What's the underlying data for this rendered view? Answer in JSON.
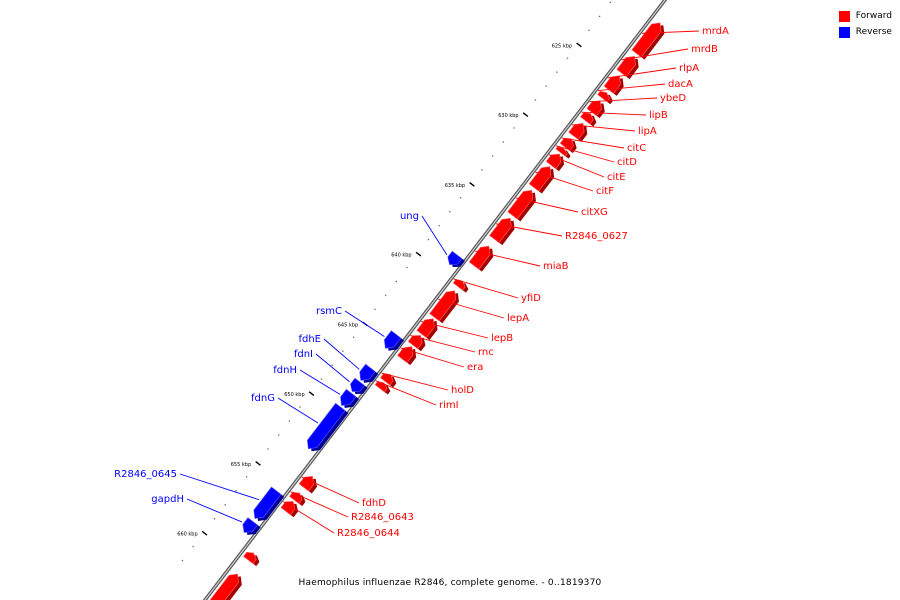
{
  "colors": {
    "forward": "#ff0000",
    "reverse": "#0000ff",
    "backbone": "#888888"
  },
  "legend": [
    {
      "label": "Forward",
      "color": "#ff0000"
    },
    {
      "label": "Reverse",
      "color": "#0000ff"
    }
  ],
  "caption": "Haemophilus influenzae R2846, complete genome. - 0..1819370",
  "chart_data": {
    "type": "genome-map",
    "unit": "kbp",
    "view_range": [
      620,
      663
    ],
    "tick_labels": [
      "625 kbp",
      "630 kbp",
      "635 kbp",
      "640 kbp",
      "645 kbp",
      "650 kbp",
      "655 kbp",
      "660 kbp"
    ],
    "tick_positions": [
      625,
      630,
      635,
      640,
      645,
      650,
      655,
      660
    ],
    "genes": [
      {
        "name": "mrdA",
        "strand": "forward",
        "start": 621.2,
        "end": 623.4
      },
      {
        "name": "mrdB",
        "strand": "forward",
        "start": 623.6,
        "end": 624.8
      },
      {
        "name": "rlpA",
        "strand": "forward",
        "start": 625.0,
        "end": 626.0
      },
      {
        "name": "dacA",
        "strand": "forward",
        "start": 626.2,
        "end": 626.6
      },
      {
        "name": "ybeD",
        "strand": "forward",
        "start": 626.8,
        "end": 627.6
      },
      {
        "name": "lipB",
        "strand": "forward",
        "start": 627.7,
        "end": 628.2
      },
      {
        "name": "lipA",
        "strand": "forward",
        "start": 628.4,
        "end": 629.3
      },
      {
        "name": "citC",
        "strand": "forward",
        "start": 629.5,
        "end": 630.1
      },
      {
        "name": "citD",
        "strand": "forward",
        "start": 630.2,
        "end": 630.5
      },
      {
        "name": "citE",
        "strand": "forward",
        "start": 630.6,
        "end": 631.4
      },
      {
        "name": "citF",
        "strand": "forward",
        "start": 631.5,
        "end": 633.0
      },
      {
        "name": "citXG",
        "strand": "forward",
        "start": 633.2,
        "end": 635.0
      },
      {
        "name": "R2846_0627",
        "strand": "forward",
        "start": 635.2,
        "end": 636.7
      },
      {
        "name": "miaB",
        "strand": "forward",
        "start": 637.2,
        "end": 638.6
      },
      {
        "name": "ung",
        "strand": "reverse",
        "start": 638.7,
        "end": 639.4
      },
      {
        "name": "yfiD",
        "strand": "forward",
        "start": 639.7,
        "end": 640.1
      },
      {
        "name": "lepA",
        "strand": "forward",
        "start": 640.4,
        "end": 642.3
      },
      {
        "name": "lepB",
        "strand": "forward",
        "start": 642.4,
        "end": 643.5
      },
      {
        "name": "rnc",
        "strand": "forward",
        "start": 643.6,
        "end": 644.3
      },
      {
        "name": "era",
        "strand": "forward",
        "start": 644.4,
        "end": 645.3
      },
      {
        "name": "rsmC",
        "strand": "reverse",
        "start": 644.4,
        "end": 645.4
      },
      {
        "name": "holD",
        "strand": "forward",
        "start": 646.4,
        "end": 646.9
      },
      {
        "name": "rimI",
        "strand": "forward",
        "start": 647.0,
        "end": 647.4
      },
      {
        "name": "fdhE",
        "strand": "reverse",
        "start": 646.8,
        "end": 647.7
      },
      {
        "name": "fdnI",
        "strand": "reverse",
        "start": 647.8,
        "end": 648.5
      },
      {
        "name": "fdnH",
        "strand": "reverse",
        "start": 648.6,
        "end": 649.5
      },
      {
        "name": "fdnG",
        "strand": "reverse",
        "start": 649.6,
        "end": 652.6
      },
      {
        "name": "fdhD",
        "strand": "forward",
        "start": 653.7,
        "end": 654.5
      },
      {
        "name": "R2846_0643",
        "strand": "forward",
        "start": 654.9,
        "end": 655.4
      },
      {
        "name": "R2846_0644",
        "strand": "forward",
        "start": 655.5,
        "end": 656.2
      },
      {
        "name": "R2846_0645",
        "strand": "reverse",
        "start": 655.6,
        "end": 657.6
      },
      {
        "name": "gapdH",
        "strand": "reverse",
        "start": 657.8,
        "end": 658.6
      },
      {
        "strand": "forward",
        "start": 659.2,
        "end": 659.7
      },
      {
        "strand": "forward",
        "start": 660.7,
        "end": 663.0
      }
    ]
  }
}
